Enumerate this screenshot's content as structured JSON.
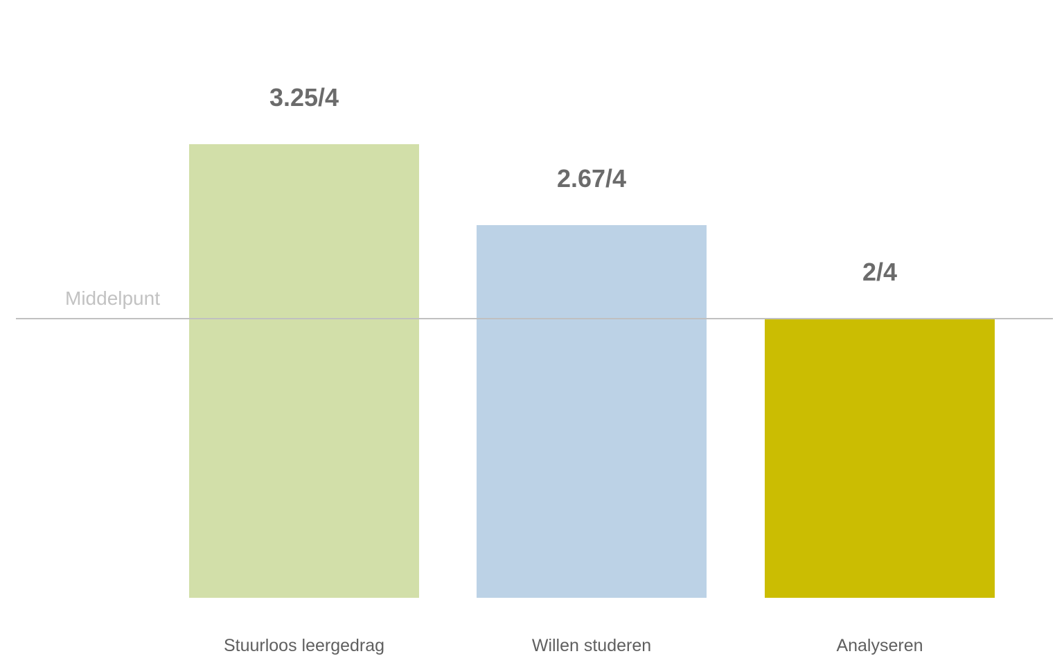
{
  "chart_data": {
    "type": "bar",
    "categories": [
      "Stuurloos leergedrag",
      "Willen studeren",
      "Analyseren"
    ],
    "values": [
      3.25,
      2.67,
      2
    ],
    "value_labels": [
      "3.25/4",
      "2.67/4",
      "2/4"
    ],
    "bar_colors": [
      "#d2dfa9",
      "#bcd2e6",
      "#cbbd02"
    ],
    "ylim": [
      0,
      4
    ],
    "reference_line": {
      "label": "Middelpunt",
      "value": 2,
      "color": "#c0c0c0"
    },
    "grid": false,
    "legend": "none"
  },
  "colors": {
    "value_label": "#6b6b6b",
    "category_label": "#5f5f5f",
    "reference_label": "#c2c2c2"
  }
}
